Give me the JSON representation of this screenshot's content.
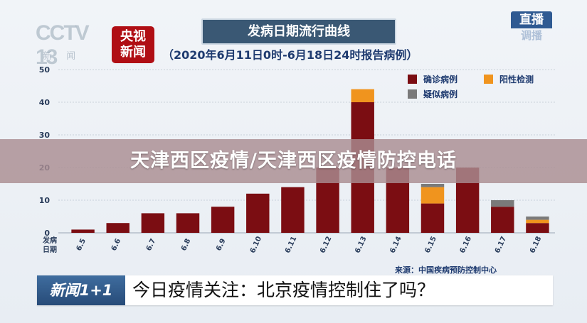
{
  "header": {
    "cctv_logo": "CCTV 13",
    "cctv_sub": "新 闻",
    "news_logo_line1": "央视",
    "news_logo_line2": "新闻",
    "live_top": "直播",
    "live_bottom": "调播"
  },
  "banner": {
    "text": "天津西区疫情/天津西区疫情防控电话"
  },
  "ticker": {
    "logo": "新闻1+1",
    "text": "今日疫情关注：北京疫情控制住了吗？"
  },
  "colors": {
    "confirmed": "#7b0d12",
    "positive": "#f0941e",
    "suspected": "#7a7a7a"
  },
  "chart_data": {
    "type": "bar",
    "stacked": true,
    "title": "发病日期流行曲线",
    "subtitle": "（2020年6月11日0时-6月18日24时报告病例）",
    "source": "来源：中国疾病预防控制中心",
    "xlabel": "发病\n日期",
    "ylabel": "",
    "ylim": [
      0,
      50
    ],
    "yticks": [
      0,
      10,
      20,
      30,
      40,
      50
    ],
    "grid": true,
    "legend_position": "top-right",
    "categories": [
      "6.5",
      "6.6",
      "6.7",
      "6.8",
      "6.9",
      "6.10",
      "6.11",
      "6.12",
      "6.13",
      "6.14",
      "6.15",
      "6.16",
      "6.17",
      "6.18"
    ],
    "series": [
      {
        "name": "确诊病例",
        "color": "#7b0d12",
        "values": [
          1,
          3,
          6,
          6,
          8,
          12,
          14,
          20,
          40,
          20,
          9,
          20,
          8,
          3
        ]
      },
      {
        "name": "阳性检测",
        "color": "#f0941e",
        "values": [
          0,
          0,
          0,
          0,
          0,
          0,
          0,
          0,
          4,
          0,
          5,
          0,
          0,
          1
        ]
      },
      {
        "name": "疑似病例",
        "color": "#7a7a7a",
        "values": [
          0,
          0,
          0,
          0,
          0,
          0,
          0,
          0,
          0,
          0,
          1,
          0,
          2,
          1
        ]
      }
    ]
  }
}
